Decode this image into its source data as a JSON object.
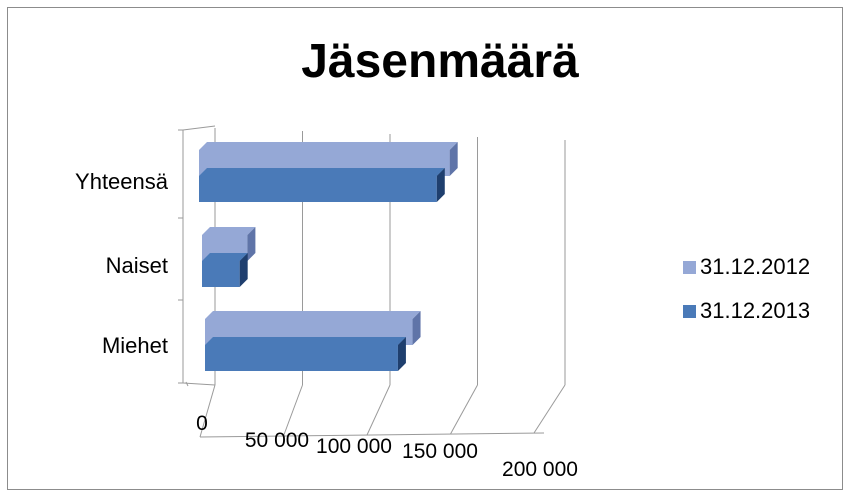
{
  "chart_data": {
    "type": "bar",
    "orientation": "horizontal",
    "style": "3d-clustered",
    "title": "Jäsenmäärä",
    "xlabel": "",
    "ylabel": "",
    "categories": [
      "Miehet",
      "Naiset",
      "Yhteensä"
    ],
    "series": [
      {
        "name": "31.12.2012",
        "color": "#95a8d6",
        "side_color": "#5f74a8",
        "values": [
          118000,
          24000,
          143000
        ]
      },
      {
        "name": "31.12.2013",
        "color": "#4a7ab8",
        "side_color": "#1f3f6e",
        "values": [
          113000,
          23000,
          139000
        ]
      }
    ],
    "xlim": [
      0,
      200000
    ],
    "ticks": [
      {
        "value": 0,
        "label": "0"
      },
      {
        "value": 50000,
        "label": "50 000"
      },
      {
        "value": 100000,
        "label": "100 000"
      },
      {
        "value": 150000,
        "label": "150 000"
      },
      {
        "value": 200000,
        "label": "200 000"
      }
    ],
    "grid": true,
    "legend_position": "right"
  }
}
